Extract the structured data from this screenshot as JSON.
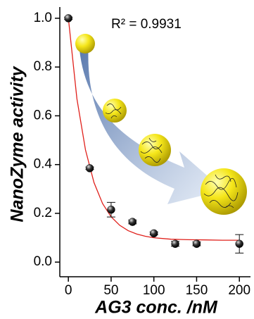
{
  "chart_data": {
    "type": "scatter",
    "y_label": "NanoZyme activity",
    "x_label": "AG3 conc. /nM",
    "annotation": "R² = 0.9931",
    "xlim": [
      -10,
      213
    ],
    "ylim": [
      -0.06,
      1.046
    ],
    "xticks": [
      0,
      50,
      100,
      150,
      200
    ],
    "yticks": [
      {
        "value": 0,
        "label": "0.0"
      },
      0.2,
      0.4,
      0.6,
      0.8,
      {
        "value": 1,
        "label": "1.0"
      }
    ],
    "series": [
      {
        "color": "#111111",
        "x": [
          0,
          25,
          50,
          75,
          100,
          125,
          150,
          200
        ],
        "values": [
          1.0,
          0.385,
          0.215,
          0.165,
          0.118,
          0.075,
          0.075,
          0.075
        ],
        "errors": [
          0.005,
          0.005,
          0.03,
          0.008,
          0.006,
          0.01,
          0.008,
          0.038
        ]
      },
      {
        "type": "line",
        "color": "#e0201b",
        "x": [
          0,
          10,
          20,
          30,
          40,
          50,
          60,
          70,
          80,
          90,
          100,
          120,
          140,
          160,
          180,
          200
        ],
        "values": [
          1.0,
          0.67,
          0.46,
          0.326,
          0.24,
          0.186,
          0.151,
          0.129,
          0.115,
          0.106,
          0.1,
          0.094,
          0.092,
          0.091,
          0.09,
          0.09
        ]
      }
    ]
  }
}
